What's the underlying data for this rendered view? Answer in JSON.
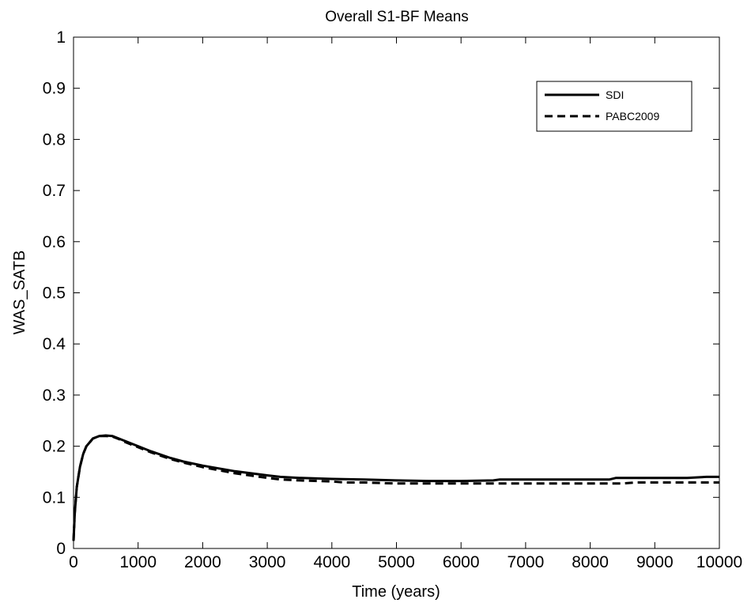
{
  "chart_data": {
    "type": "line",
    "title": "Overall S1-BF Means",
    "xlabel": "Time (years)",
    "ylabel": "WAS_SATB",
    "xlim": [
      0,
      10000
    ],
    "ylim": [
      0,
      1
    ],
    "xticks": [
      0,
      1000,
      2000,
      3000,
      4000,
      5000,
      6000,
      7000,
      8000,
      9000,
      10000
    ],
    "yticks": [
      0,
      0.1,
      0.2,
      0.3,
      0.4,
      0.5,
      0.6,
      0.7,
      0.8,
      0.9,
      1
    ],
    "grid": false,
    "legend_position": "top-right",
    "series": [
      {
        "name": "SDI",
        "style": "solid",
        "color": "#000000",
        "x": [
          0,
          20,
          50,
          100,
          150,
          200,
          300,
          400,
          500,
          600,
          700,
          800,
          1000,
          1200,
          1500,
          1700,
          2000,
          2500,
          3000,
          3200,
          3500,
          4000,
          4500,
          5000,
          5500,
          6000,
          6500,
          6600,
          7000,
          7500,
          8000,
          8300,
          8400,
          9000,
          9500,
          9800,
          10000
        ],
        "y": [
          0.015,
          0.07,
          0.12,
          0.16,
          0.185,
          0.2,
          0.215,
          0.22,
          0.221,
          0.22,
          0.215,
          0.21,
          0.2,
          0.19,
          0.177,
          0.17,
          0.162,
          0.151,
          0.143,
          0.14,
          0.138,
          0.136,
          0.135,
          0.133,
          0.132,
          0.132,
          0.133,
          0.135,
          0.135,
          0.135,
          0.135,
          0.135,
          0.138,
          0.138,
          0.138,
          0.14,
          0.14
        ]
      },
      {
        "name": "PABC2009",
        "style": "dashed",
        "color": "#000000",
        "x": [
          0,
          20,
          50,
          100,
          150,
          200,
          300,
          400,
          500,
          600,
          700,
          800,
          1000,
          1200,
          1500,
          1700,
          2000,
          2500,
          3000,
          3200,
          3500,
          4000,
          4200,
          4500,
          5000,
          5500,
          6000,
          6500,
          7000,
          7500,
          8000,
          8500,
          8700,
          9000,
          9500,
          10000
        ],
        "y": [
          0.015,
          0.07,
          0.12,
          0.16,
          0.185,
          0.2,
          0.215,
          0.22,
          0.22,
          0.219,
          0.214,
          0.208,
          0.198,
          0.188,
          0.175,
          0.168,
          0.159,
          0.147,
          0.138,
          0.135,
          0.133,
          0.131,
          0.129,
          0.129,
          0.127,
          0.127,
          0.127,
          0.127,
          0.127,
          0.127,
          0.127,
          0.127,
          0.129,
          0.129,
          0.129,
          0.129
        ]
      }
    ]
  }
}
